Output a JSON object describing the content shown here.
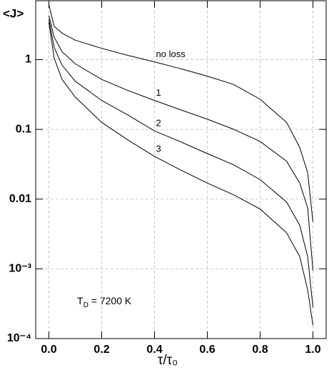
{
  "chart_data": {
    "type": "line",
    "y_label": "<J>",
    "x_label": "τ/τ₀",
    "annotation": {
      "symbol": "T",
      "subscript": "D",
      "text": "= 7200 K"
    },
    "x": [
      0,
      0.02,
      0.05,
      0.1,
      0.2,
      0.3,
      0.4,
      0.5,
      0.6,
      0.7,
      0.8,
      0.9,
      0.95,
      0.98,
      1.0
    ],
    "series": [
      {
        "name": "no loss",
        "color": "#000000",
        "values": [
          6.1,
          3.0,
          2.4,
          1.9,
          1.45,
          1.15,
          0.93,
          0.74,
          0.58,
          0.44,
          0.27,
          0.126,
          0.055,
          0.024,
          0.0047
        ]
      },
      {
        "name": "1",
        "color": "#000000",
        "values": [
          4.3,
          2.1,
          1.3,
          0.87,
          0.52,
          0.36,
          0.26,
          0.19,
          0.14,
          0.1,
          0.067,
          0.035,
          0.017,
          0.0075,
          0.00095
        ]
      },
      {
        "name": "2",
        "color": "#000000",
        "values": [
          3.8,
          1.5,
          0.83,
          0.49,
          0.26,
          0.16,
          0.095,
          0.066,
          0.045,
          0.031,
          0.019,
          0.0091,
          0.0042,
          0.0015,
          0.00028
        ]
      },
      {
        "name": "3",
        "color": "#000000",
        "values": [
          3.4,
          1.05,
          0.52,
          0.29,
          0.126,
          0.07,
          0.041,
          0.026,
          0.017,
          0.0115,
          0.0072,
          0.0033,
          0.0015,
          0.0005,
          0.000155
        ]
      }
    ],
    "xlim": [
      -0.05,
      1.05
    ],
    "xticks": [
      {
        "value": 0,
        "label": "0.0"
      },
      0.2,
      0.4,
      0.6,
      0.8,
      {
        "value": 1,
        "label": "1.0"
      }
    ],
    "ylim": [
      0.0001,
      7
    ],
    "yticks": [
      {
        "value": 0.0001,
        "label": "10⁻⁴"
      },
      {
        "value": 0.001,
        "label": "10⁻³"
      },
      0.01,
      0.1,
      1
    ],
    "log_y": true,
    "grid": true
  }
}
